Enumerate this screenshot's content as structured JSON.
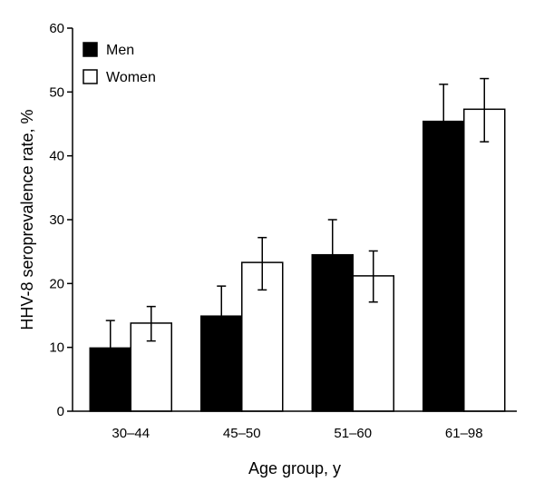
{
  "chart_data": {
    "type": "bar",
    "title": "",
    "xlabel": "Age group, y",
    "ylabel": "HHV-8 seroprevalence rate, %",
    "ylim": [
      0,
      60
    ],
    "yticks": [
      "0",
      "10",
      "20",
      "30",
      "40",
      "50",
      "60"
    ],
    "categories": [
      "30–44",
      "45–50",
      "51–60",
      "61–98"
    ],
    "series": [
      {
        "name": "Men",
        "color": "#000000",
        "values": [
          9.9,
          14.9,
          24.5,
          45.4
        ],
        "error_low": [
          5.6,
          10.2,
          19.3,
          39.7
        ],
        "error_high": [
          14.2,
          19.6,
          30.0,
          51.2
        ]
      },
      {
        "name": "Women",
        "color": "#ffffff",
        "values": [
          13.8,
          23.3,
          21.2,
          47.3
        ],
        "error_low": [
          11.0,
          19.0,
          17.1,
          42.2
        ],
        "error_high": [
          16.4,
          27.2,
          25.1,
          52.1
        ]
      }
    ],
    "legend": {
      "position": "top-left"
    },
    "grid": false
  }
}
